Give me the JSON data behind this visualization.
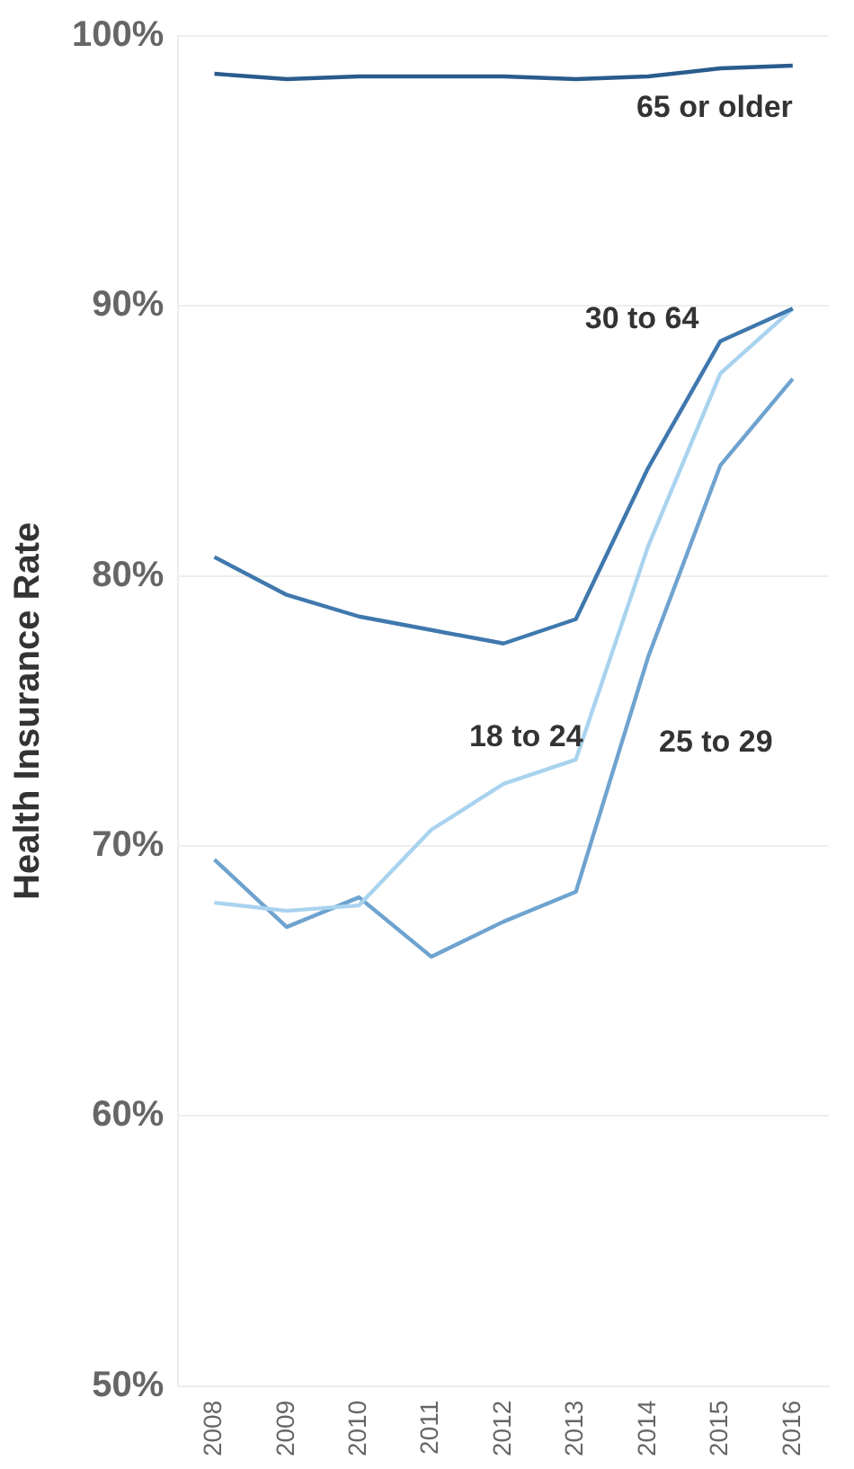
{
  "chart_data": {
    "type": "line",
    "ylabel": "Health Insurance Rate",
    "categories": [
      "2008",
      "2009",
      "2010",
      "2011",
      "2012",
      "2013",
      "2014",
      "2015",
      "2016"
    ],
    "series": [
      {
        "name": "65 or older",
        "color": "#2a5b8c",
        "values": [
          98.6,
          98.4,
          98.5,
          98.5,
          98.5,
          98.4,
          98.5,
          98.8,
          98.9
        ]
      },
      {
        "name": "30 to 64",
        "color": "#3f78ad",
        "values": [
          80.7,
          79.3,
          78.5,
          78.0,
          77.5,
          78.4,
          84.0,
          88.7,
          89.9
        ]
      },
      {
        "name": "18 to 24",
        "color": "#a9d3ef",
        "values": [
          67.9,
          67.6,
          67.8,
          70.6,
          72.3,
          73.2,
          81.1,
          87.5,
          89.9
        ]
      },
      {
        "name": "25 to 29",
        "color": "#6fa3cf",
        "values": [
          69.5,
          67.0,
          68.1,
          65.9,
          67.2,
          68.3,
          77.0,
          84.1,
          87.3
        ]
      }
    ],
    "ylim": [
      50,
      100
    ],
    "yticks": [
      {
        "value": 50,
        "label": "50%"
      },
      {
        "value": 60,
        "label": "60%"
      },
      {
        "value": 70,
        "label": "70%"
      },
      {
        "value": 80,
        "label": "80%"
      },
      {
        "value": 90,
        "label": "90%"
      },
      {
        "value": 100,
        "label": "100%"
      }
    ],
    "grid": "y",
    "legend": false,
    "marker": "none",
    "line_style": "solid"
  }
}
